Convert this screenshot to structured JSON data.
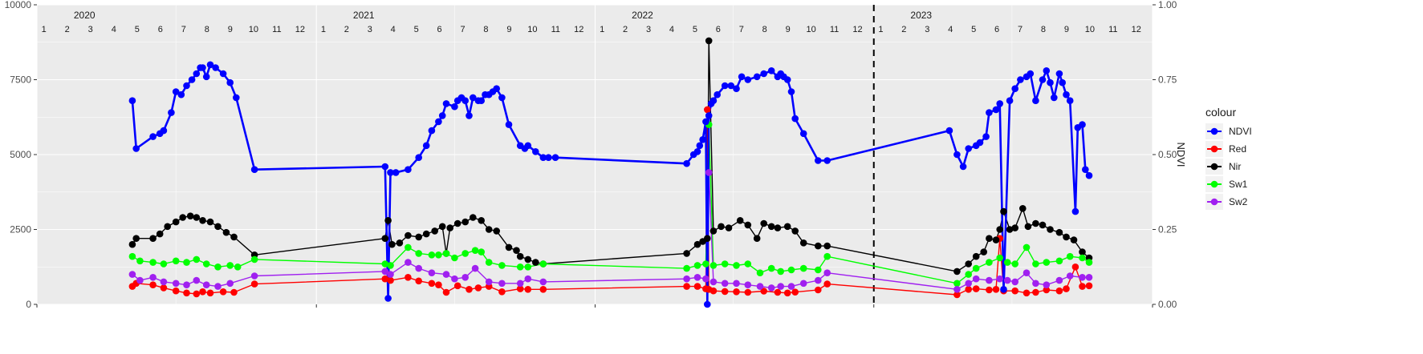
{
  "chart_data": {
    "type": "line",
    "title": "",
    "xlabel": "",
    "ylabel_left": "",
    "ylabel_right": "NDVI",
    "x_start": "2020-01-01",
    "x_end": "2024-01-01",
    "ylim_left": [
      0,
      10000
    ],
    "ylim_right": [
      0,
      1
    ],
    "yticks_left": [
      "0",
      "2500",
      "5000",
      "7500",
      "10000"
    ],
    "yticks_right": [
      "0.00",
      "0.25",
      "0.50",
      "0.75",
      "1.00"
    ],
    "year_labels": [
      "2020",
      "2021",
      "2022",
      "2023"
    ],
    "month_labels": [
      "1",
      "2",
      "3",
      "4",
      "5",
      "6",
      "7",
      "8",
      "9",
      "10",
      "11",
      "12"
    ],
    "vline": {
      "date": "2023-01-01",
      "style": "dashed"
    },
    "grid": true,
    "legend": {
      "title": "colour",
      "position": "right",
      "entries": [
        {
          "label": "NDVI",
          "color": "#0000ff"
        },
        {
          "label": "Red",
          "color": "#ff0000"
        },
        {
          "label": "Nir",
          "color": "#000000"
        },
        {
          "label": "Sw1",
          "color": "#00ff00"
        },
        {
          "label": "Sw2",
          "color": "#a020f0"
        }
      ]
    },
    "series": [
      {
        "name": "NDVI",
        "axis": "right",
        "color": "#0000ff",
        "x": [
          "2020-05-05",
          "2020-05-10",
          "2020-06-01",
          "2020-06-10",
          "2020-06-15",
          "2020-06-25",
          "2020-07-01",
          "2020-07-08",
          "2020-07-15",
          "2020-07-22",
          "2020-07-28",
          "2020-08-02",
          "2020-08-05",
          "2020-08-10",
          "2020-08-15",
          "2020-08-22",
          "2020-09-01",
          "2020-09-10",
          "2020-09-18",
          "2020-10-12",
          "2021-04-01",
          "2021-04-05",
          "2021-04-08",
          "2021-04-15",
          "2021-05-01",
          "2021-05-15",
          "2021-05-25",
          "2021-06-01",
          "2021-06-10",
          "2021-06-15",
          "2021-06-20",
          "2021-07-01",
          "2021-07-05",
          "2021-07-10",
          "2021-07-15",
          "2021-07-20",
          "2021-07-25",
          "2021-08-01",
          "2021-08-05",
          "2021-08-10",
          "2021-08-15",
          "2021-08-20",
          "2021-08-25",
          "2021-09-01",
          "2021-09-10",
          "2021-09-25",
          "2021-10-01",
          "2021-10-05",
          "2021-10-15",
          "2021-10-25",
          "2021-11-01",
          "2021-11-10",
          "2022-05-01",
          "2022-05-10",
          "2022-05-15",
          "2022-05-18",
          "2022-05-22",
          "2022-05-26",
          "2022-05-28",
          "2022-05-30",
          "2022-06-02",
          "2022-06-05",
          "2022-06-10",
          "2022-06-20",
          "2022-06-28",
          "2022-07-05",
          "2022-07-12",
          "2022-07-20",
          "2022-08-01",
          "2022-08-10",
          "2022-08-20",
          "2022-08-28",
          "2022-09-01",
          "2022-09-05",
          "2022-09-10",
          "2022-09-15",
          "2022-09-20",
          "2022-10-01",
          "2022-10-20",
          "2022-11-01",
          "2023-04-10",
          "2023-04-20",
          "2023-04-28",
          "2023-05-05",
          "2023-05-15",
          "2023-05-20",
          "2023-05-28",
          "2023-06-01",
          "2023-06-10",
          "2023-06-15",
          "2023-06-20",
          "2023-06-28",
          "2023-07-05",
          "2023-07-12",
          "2023-07-20",
          "2023-07-25",
          "2023-08-01",
          "2023-08-10",
          "2023-08-15",
          "2023-08-20",
          "2023-08-25",
          "2023-09-01",
          "2023-09-05",
          "2023-09-10",
          "2023-09-15",
          "2023-09-22",
          "2023-09-25",
          "2023-10-01",
          "2023-10-05",
          "2023-10-10"
        ],
        "values": [
          0.68,
          0.52,
          0.56,
          0.57,
          0.58,
          0.64,
          0.71,
          0.7,
          0.73,
          0.75,
          0.77,
          0.79,
          0.79,
          0.76,
          0.8,
          0.79,
          0.77,
          0.74,
          0.69,
          0.45,
          0.46,
          0.02,
          0.44,
          0.44,
          0.45,
          0.49,
          0.53,
          0.58,
          0.61,
          0.63,
          0.67,
          0.66,
          0.68,
          0.69,
          0.68,
          0.63,
          0.69,
          0.68,
          0.68,
          0.7,
          0.7,
          0.71,
          0.72,
          0.69,
          0.6,
          0.53,
          0.52,
          0.53,
          0.51,
          0.49,
          0.49,
          0.49,
          0.47,
          0.5,
          0.51,
          0.53,
          0.55,
          0.61,
          0.0,
          0.63,
          0.67,
          0.68,
          0.7,
          0.73,
          0.73,
          0.72,
          0.76,
          0.75,
          0.76,
          0.77,
          0.78,
          0.76,
          0.77,
          0.76,
          0.75,
          0.71,
          0.62,
          0.57,
          0.48,
          0.48,
          0.58,
          0.5,
          0.46,
          0.52,
          0.53,
          0.54,
          0.56,
          0.64,
          0.65,
          0.67,
          0.05,
          0.68,
          0.72,
          0.75,
          0.76,
          0.77,
          0.68,
          0.75,
          0.78,
          0.74,
          0.69,
          0.77,
          0.74,
          0.7,
          0.68,
          0.31,
          0.59,
          0.6,
          0.45,
          0.43
        ]
      },
      {
        "name": "Red",
        "axis": "left",
        "color": "#ff0000",
        "x": [
          "2020-05-05",
          "2020-05-10",
          "2020-06-01",
          "2020-06-15",
          "2020-07-01",
          "2020-07-15",
          "2020-07-28",
          "2020-08-05",
          "2020-08-15",
          "2020-09-01",
          "2020-09-15",
          "2020-10-12",
          "2021-04-01",
          "2021-04-08",
          "2021-05-01",
          "2021-05-15",
          "2021-06-01",
          "2021-06-10",
          "2021-06-20",
          "2021-07-05",
          "2021-07-20",
          "2021-08-01",
          "2021-08-15",
          "2021-09-01",
          "2021-09-25",
          "2021-10-05",
          "2021-10-25",
          "2022-05-01",
          "2022-05-15",
          "2022-05-26",
          "2022-05-28",
          "2022-05-30",
          "2022-06-05",
          "2022-06-20",
          "2022-07-05",
          "2022-07-20",
          "2022-08-10",
          "2022-08-28",
          "2022-09-10",
          "2022-09-20",
          "2022-10-20",
          "2022-11-01",
          "2023-04-20",
          "2023-05-05",
          "2023-05-15",
          "2023-06-01",
          "2023-06-10",
          "2023-06-15",
          "2023-06-20",
          "2023-07-05",
          "2023-07-20",
          "2023-08-01",
          "2023-08-15",
          "2023-09-01",
          "2023-09-10",
          "2023-09-22",
          "2023-10-01",
          "2023-10-10"
        ],
        "values": [
          600,
          700,
          650,
          550,
          450,
          380,
          350,
          420,
          380,
          420,
          400,
          680,
          850,
          800,
          900,
          780,
          700,
          650,
          400,
          620,
          500,
          550,
          600,
          420,
          520,
          500,
          500,
          600,
          600,
          520,
          6500,
          500,
          450,
          430,
          420,
          400,
          440,
          400,
          380,
          410,
          480,
          680,
          320,
          500,
          520,
          480,
          500,
          2200,
          450,
          450,
          380,
          400,
          480,
          450,
          520,
          1250,
          600,
          620
        ]
      },
      {
        "name": "Nir",
        "axis": "left",
        "color": "#000000",
        "x": [
          "2020-05-05",
          "2020-05-10",
          "2020-06-01",
          "2020-06-10",
          "2020-06-20",
          "2020-07-01",
          "2020-07-10",
          "2020-07-20",
          "2020-07-28",
          "2020-08-05",
          "2020-08-15",
          "2020-08-25",
          "2020-09-05",
          "2020-09-15",
          "2020-10-12",
          "2021-04-01",
          "2021-04-05",
          "2021-04-10",
          "2021-04-20",
          "2021-05-01",
          "2021-05-15",
          "2021-05-25",
          "2021-06-05",
          "2021-06-15",
          "2021-06-20",
          "2021-06-25",
          "2021-07-05",
          "2021-07-15",
          "2021-07-25",
          "2021-08-05",
          "2021-08-15",
          "2021-08-25",
          "2021-09-10",
          "2021-09-20",
          "2021-09-25",
          "2021-10-05",
          "2021-10-15",
          "2021-10-25",
          "2022-05-01",
          "2022-05-15",
          "2022-05-22",
          "2022-05-28",
          "2022-05-30",
          "2022-06-05",
          "2022-06-15",
          "2022-06-25",
          "2022-07-10",
          "2022-07-20",
          "2022-08-01",
          "2022-08-10",
          "2022-08-20",
          "2022-08-28",
          "2022-09-10",
          "2022-09-20",
          "2022-10-01",
          "2022-10-20",
          "2022-11-01",
          "2023-04-20",
          "2023-05-05",
          "2023-05-15",
          "2023-05-25",
          "2023-06-01",
          "2023-06-10",
          "2023-06-15",
          "2023-06-20",
          "2023-06-28",
          "2023-07-05",
          "2023-07-15",
          "2023-07-22",
          "2023-08-01",
          "2023-08-10",
          "2023-08-20",
          "2023-09-01",
          "2023-09-10",
          "2023-09-20",
          "2023-10-01",
          "2023-10-10"
        ],
        "values": [
          2000,
          2200,
          2200,
          2350,
          2600,
          2750,
          2900,
          2950,
          2900,
          2800,
          2750,
          2600,
          2400,
          2250,
          1650,
          2200,
          2800,
          2000,
          2050,
          2300,
          2250,
          2350,
          2450,
          2600,
          1700,
          2550,
          2700,
          2750,
          2900,
          2800,
          2500,
          2450,
          1900,
          1800,
          1600,
          1500,
          1400,
          1350,
          1700,
          2000,
          2100,
          2200,
          8800,
          2450,
          2600,
          2550,
          2800,
          2650,
          2200,
          2700,
          2600,
          2550,
          2600,
          2450,
          2050,
          1950,
          1950,
          1100,
          1350,
          1600,
          1750,
          2200,
          2150,
          2500,
          3100,
          2500,
          2550,
          3200,
          2600,
          2700,
          2650,
          2500,
          2400,
          2250,
          2150,
          1750,
          1550
        ]
      },
      {
        "name": "Sw1",
        "axis": "left",
        "color": "#00ff00",
        "x": [
          "2020-05-05",
          "2020-05-15",
          "2020-06-01",
          "2020-06-15",
          "2020-07-01",
          "2020-07-15",
          "2020-07-28",
          "2020-08-10",
          "2020-08-25",
          "2020-09-10",
          "2020-09-20",
          "2020-10-12",
          "2021-04-01",
          "2021-04-08",
          "2021-05-01",
          "2021-05-15",
          "2021-06-01",
          "2021-06-10",
          "2021-06-20",
          "2021-07-01",
          "2021-07-15",
          "2021-07-28",
          "2021-08-05",
          "2021-08-15",
          "2021-09-01",
          "2021-09-25",
          "2021-10-05",
          "2021-10-25",
          "2022-05-01",
          "2022-05-15",
          "2022-05-26",
          "2022-05-30",
          "2022-06-05",
          "2022-06-20",
          "2022-07-05",
          "2022-07-20",
          "2022-08-05",
          "2022-08-20",
          "2022-09-01",
          "2022-09-15",
          "2022-10-01",
          "2022-10-20",
          "2022-11-01",
          "2023-04-20",
          "2023-05-05",
          "2023-05-15",
          "2023-06-01",
          "2023-06-15",
          "2023-06-25",
          "2023-07-05",
          "2023-07-20",
          "2023-08-01",
          "2023-08-15",
          "2023-09-01",
          "2023-09-15",
          "2023-10-01",
          "2023-10-10"
        ],
        "values": [
          1600,
          1450,
          1400,
          1350,
          1450,
          1400,
          1500,
          1350,
          1250,
          1300,
          1250,
          1500,
          1350,
          1300,
          1900,
          1700,
          1650,
          1650,
          1700,
          1550,
          1700,
          1800,
          1750,
          1400,
          1300,
          1250,
          1250,
          1350,
          1200,
          1300,
          1350,
          6000,
          1300,
          1350,
          1300,
          1350,
          1050,
          1200,
          1100,
          1150,
          1200,
          1150,
          1600,
          700,
          1000,
          1200,
          1400,
          1550,
          1400,
          1350,
          1900,
          1350,
          1400,
          1450,
          1600,
          1550,
          1400
        ]
      },
      {
        "name": "Sw2",
        "axis": "left",
        "color": "#a020f0",
        "x": [
          "2020-05-05",
          "2020-05-15",
          "2020-06-01",
          "2020-06-15",
          "2020-07-01",
          "2020-07-15",
          "2020-07-28",
          "2020-08-10",
          "2020-08-25",
          "2020-09-10",
          "2020-10-12",
          "2021-04-01",
          "2021-04-08",
          "2021-05-01",
          "2021-05-15",
          "2021-06-01",
          "2021-06-20",
          "2021-07-01",
          "2021-07-15",
          "2021-07-28",
          "2021-08-15",
          "2021-09-01",
          "2021-09-25",
          "2021-10-05",
          "2021-10-25",
          "2022-05-01",
          "2022-05-15",
          "2022-05-26",
          "2022-05-30",
          "2022-06-05",
          "2022-06-20",
          "2022-07-05",
          "2022-07-20",
          "2022-08-05",
          "2022-08-20",
          "2022-09-01",
          "2022-09-15",
          "2022-10-01",
          "2022-10-20",
          "2022-11-01",
          "2023-04-20",
          "2023-05-05",
          "2023-05-15",
          "2023-06-01",
          "2023-06-15",
          "2023-06-25",
          "2023-07-05",
          "2023-07-20",
          "2023-08-01",
          "2023-08-15",
          "2023-09-01",
          "2023-09-15",
          "2023-10-01",
          "2023-10-10"
        ],
        "values": [
          1000,
          800,
          900,
          750,
          700,
          650,
          800,
          650,
          600,
          700,
          950,
          1100,
          1000,
          1400,
          1200,
          1050,
          1000,
          850,
          900,
          1200,
          750,
          700,
          700,
          850,
          750,
          850,
          900,
          850,
          4400,
          750,
          700,
          700,
          650,
          600,
          550,
          600,
          600,
          700,
          800,
          1050,
          500,
          700,
          850,
          800,
          850,
          800,
          750,
          1050,
          700,
          650,
          800,
          950,
          900,
          900
        ]
      }
    ]
  }
}
